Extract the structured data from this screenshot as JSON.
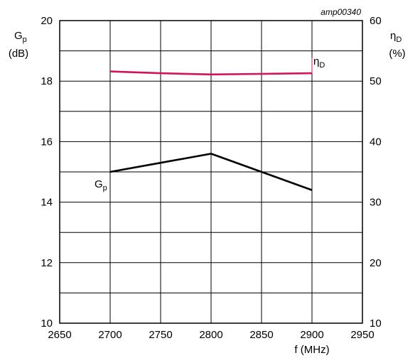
{
  "chart_data": {
    "type": "line",
    "code_label": "amp00340",
    "x_axis": {
      "label": "f (MHz)",
      "range": [
        2650,
        2950
      ],
      "ticks": [
        2650,
        2700,
        2750,
        2800,
        2850,
        2900,
        2950
      ],
      "tick_labels": [
        "2650",
        "2700",
        "2750",
        "2800",
        "2850",
        "2900",
        "2950"
      ]
    },
    "y_left": {
      "label_main": "G",
      "label_sub": "p",
      "unit": "(dB)",
      "range": [
        10,
        20
      ],
      "ticks": [
        10,
        12,
        14,
        16,
        18,
        20
      ],
      "tick_labels": [
        "10",
        "12",
        "14",
        "16",
        "18",
        "20"
      ],
      "minor_ticks": [
        11,
        13,
        15,
        17,
        19
      ]
    },
    "y_right": {
      "label_main": "η",
      "label_sub": "D",
      "unit": "(%)",
      "range": [
        10,
        60
      ],
      "ticks": [
        10,
        20,
        30,
        40,
        50,
        60
      ],
      "tick_labels": [
        "10",
        "20",
        "30",
        "40",
        "50",
        "60"
      ]
    },
    "grid": true,
    "series": [
      {
        "name_main": "G",
        "name_sub": "p",
        "axis": "left",
        "color": "#000000",
        "x": [
          2700,
          2750,
          2800,
          2850,
          2900
        ],
        "y": [
          15.0,
          15.3,
          15.6,
          15.0,
          14.4
        ]
      },
      {
        "name_main": "η",
        "name_sub": "D",
        "axis": "right",
        "color": "#d4145a",
        "x": [
          2700,
          2750,
          2800,
          2850,
          2900
        ],
        "y": [
          51.6,
          51.3,
          51.1,
          51.2,
          51.3
        ]
      }
    ]
  }
}
